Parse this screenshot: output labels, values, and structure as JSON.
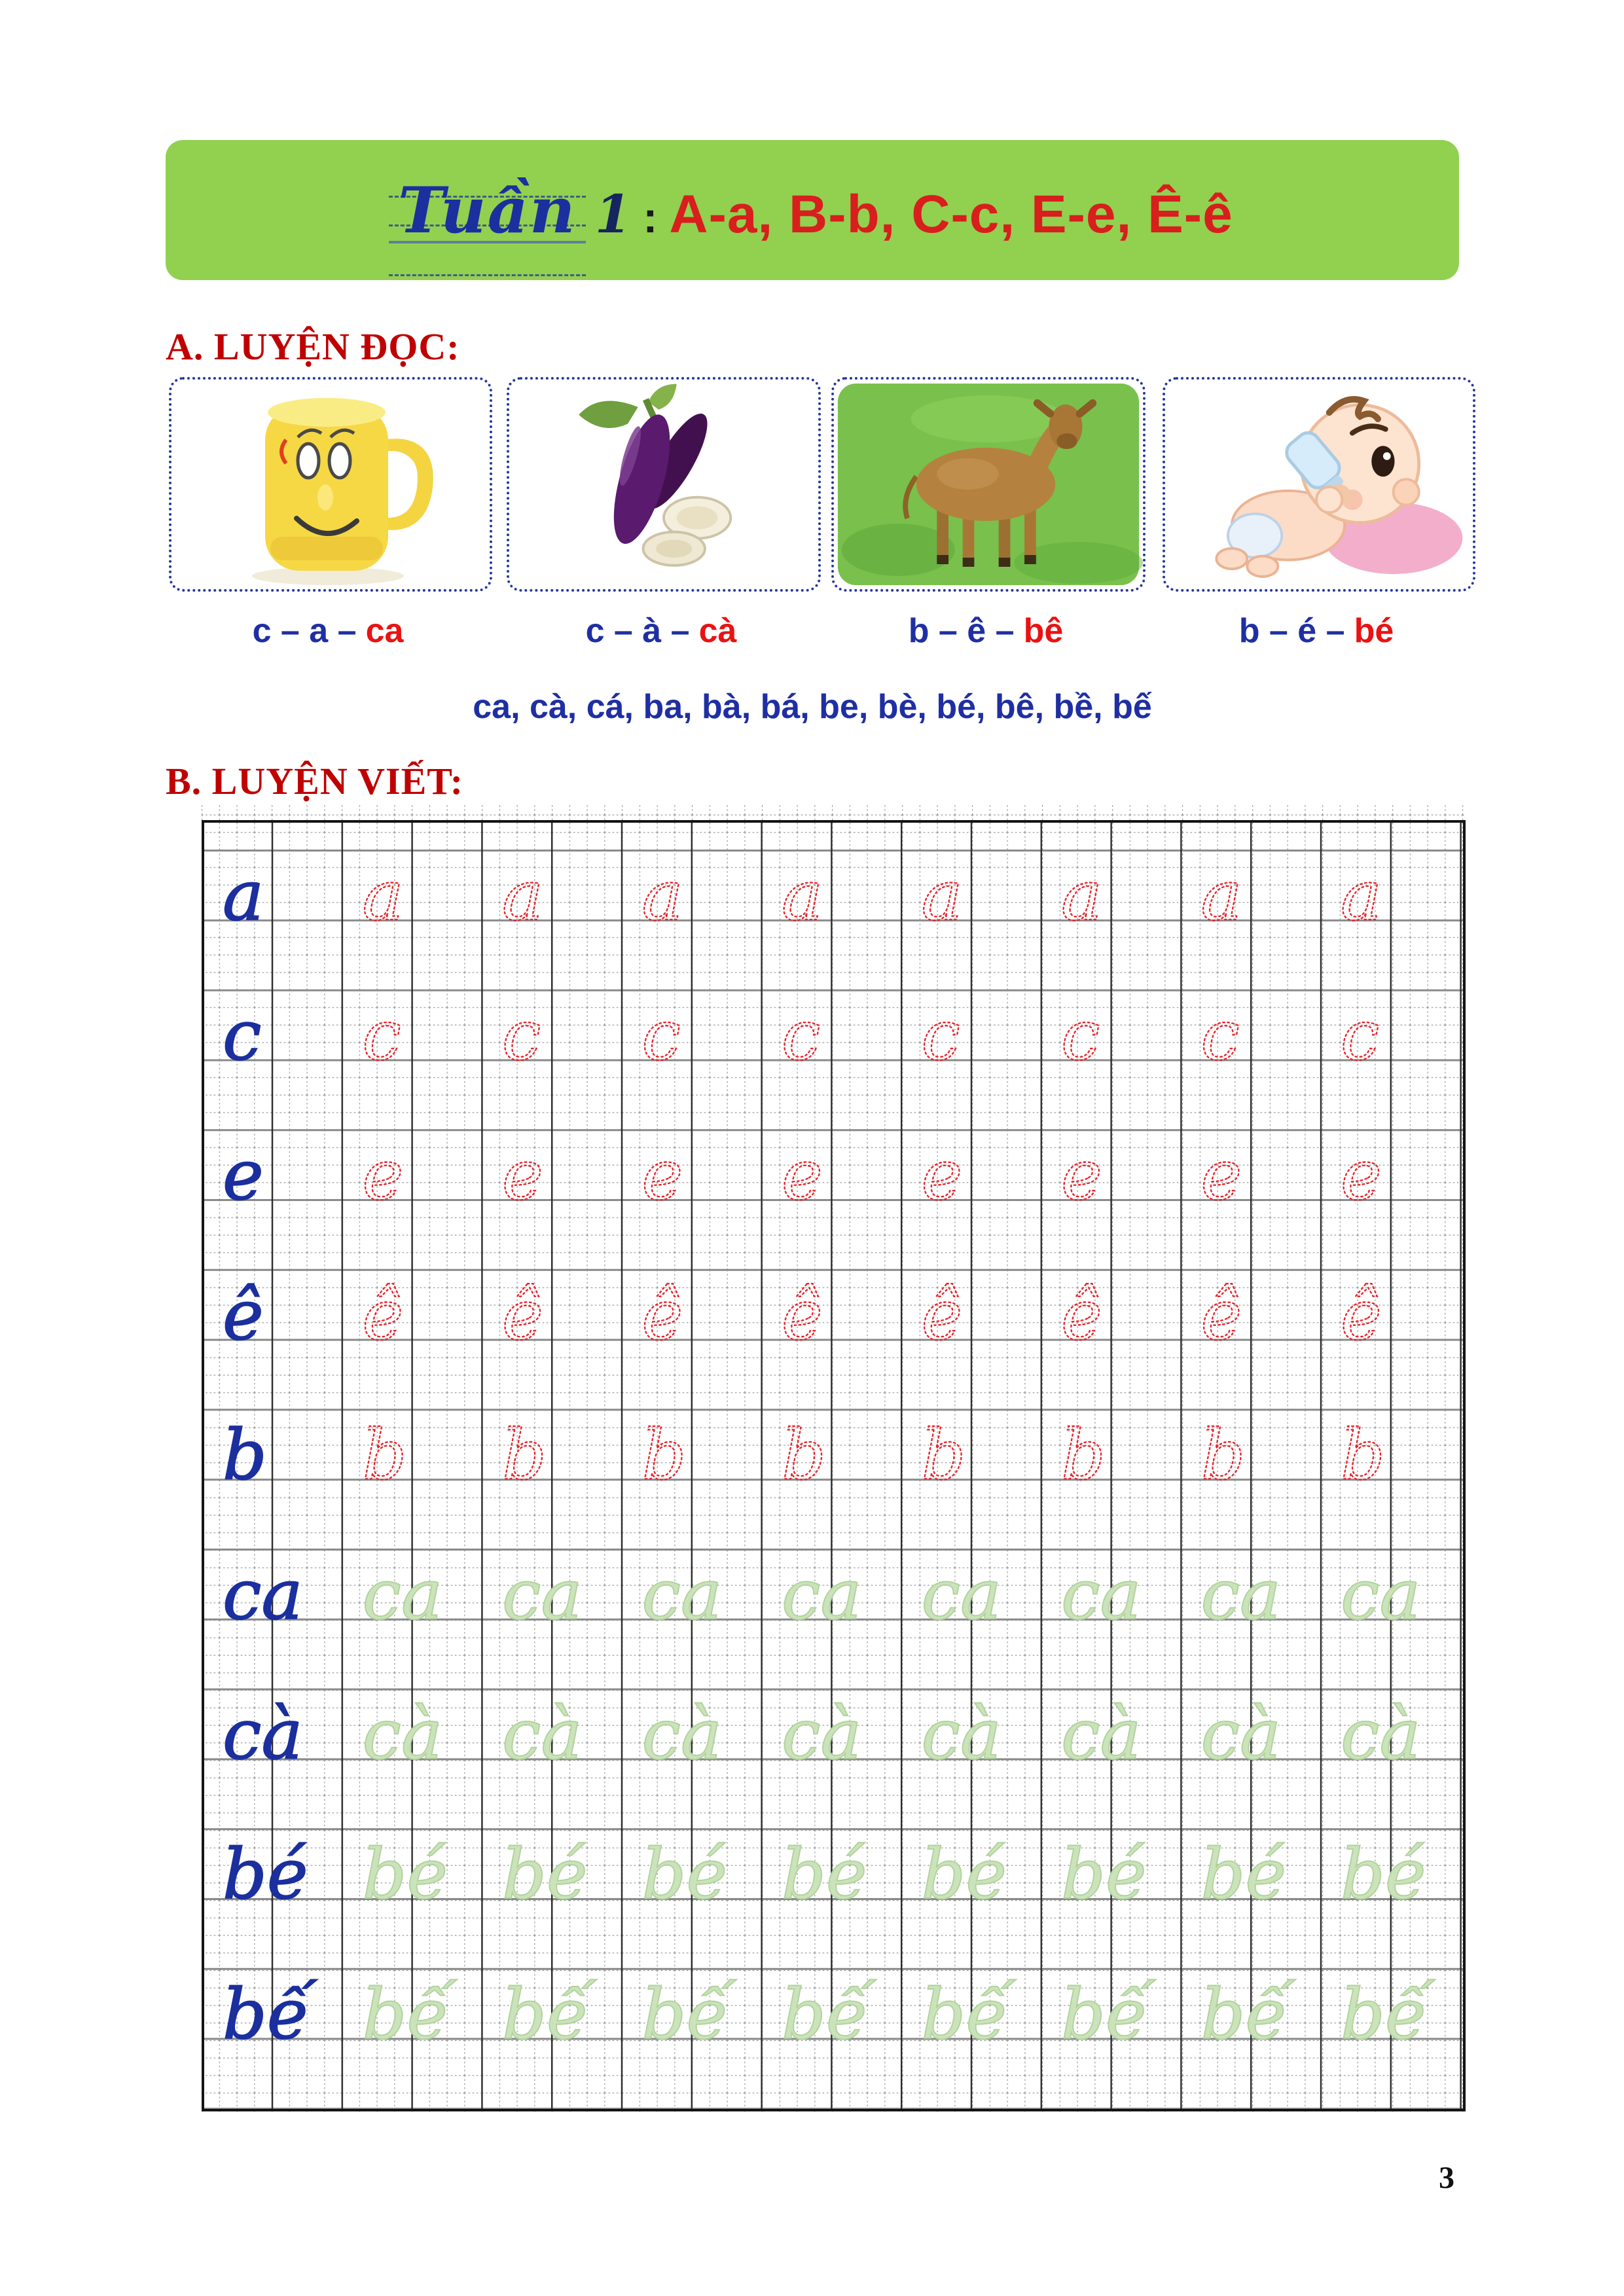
{
  "banner": {
    "week_label": "Tuần",
    "week_number": "1",
    "separator": ":",
    "letters_list": "A-a, B-b, C-c, E-e, Ê-ê",
    "bg_color": "#92d050",
    "accent_blue": "#1c2f9e",
    "accent_red": "#d91e1e"
  },
  "reading_section": {
    "title": "A. LUYỆN ĐỌC:",
    "title_color": "#c00000",
    "cards": [
      {
        "image": "yellow-smiley-mug",
        "spell_prefix": "c – a –",
        "spell_result": "ca"
      },
      {
        "image": "eggplants",
        "spell_prefix": "c – à –",
        "spell_result": "cà"
      },
      {
        "image": "brown-calf",
        "spell_prefix": "b – ê –",
        "spell_result": "bê"
      },
      {
        "image": "baby-with-bottle",
        "spell_prefix": "b – é –",
        "spell_result": "bé"
      }
    ],
    "syllable_line": "ca, cà, cá, ba, bà, bá, be, bè, bé, bê, bề, bế"
  },
  "writing_section": {
    "title": "B. LUYỆN VIẾT:",
    "title_color": "#c00000",
    "rows": [
      {
        "letter": "a",
        "trace_style": "red-dotted",
        "trace_count": 8
      },
      {
        "letter": "c",
        "trace_style": "red-dotted",
        "trace_count": 8
      },
      {
        "letter": "e",
        "trace_style": "red-dotted",
        "trace_count": 8
      },
      {
        "letter": "ê",
        "trace_style": "red-dotted",
        "trace_count": 8
      },
      {
        "letter": "b",
        "trace_style": "red-dotted",
        "trace_count": 8
      },
      {
        "letter": "ca",
        "trace_style": "green",
        "trace_count": 8
      },
      {
        "letter": "cà",
        "trace_style": "green",
        "trace_count": 8
      },
      {
        "letter": "bé",
        "trace_style": "green",
        "trace_count": 8
      },
      {
        "letter": "bế",
        "trace_style": "green",
        "trace_count": 8
      }
    ],
    "colors": {
      "model_blue": "#1b2f9e",
      "trace_red": "#e8242c",
      "trace_green": "#b2d39e"
    }
  },
  "page": {
    "number": "3"
  }
}
